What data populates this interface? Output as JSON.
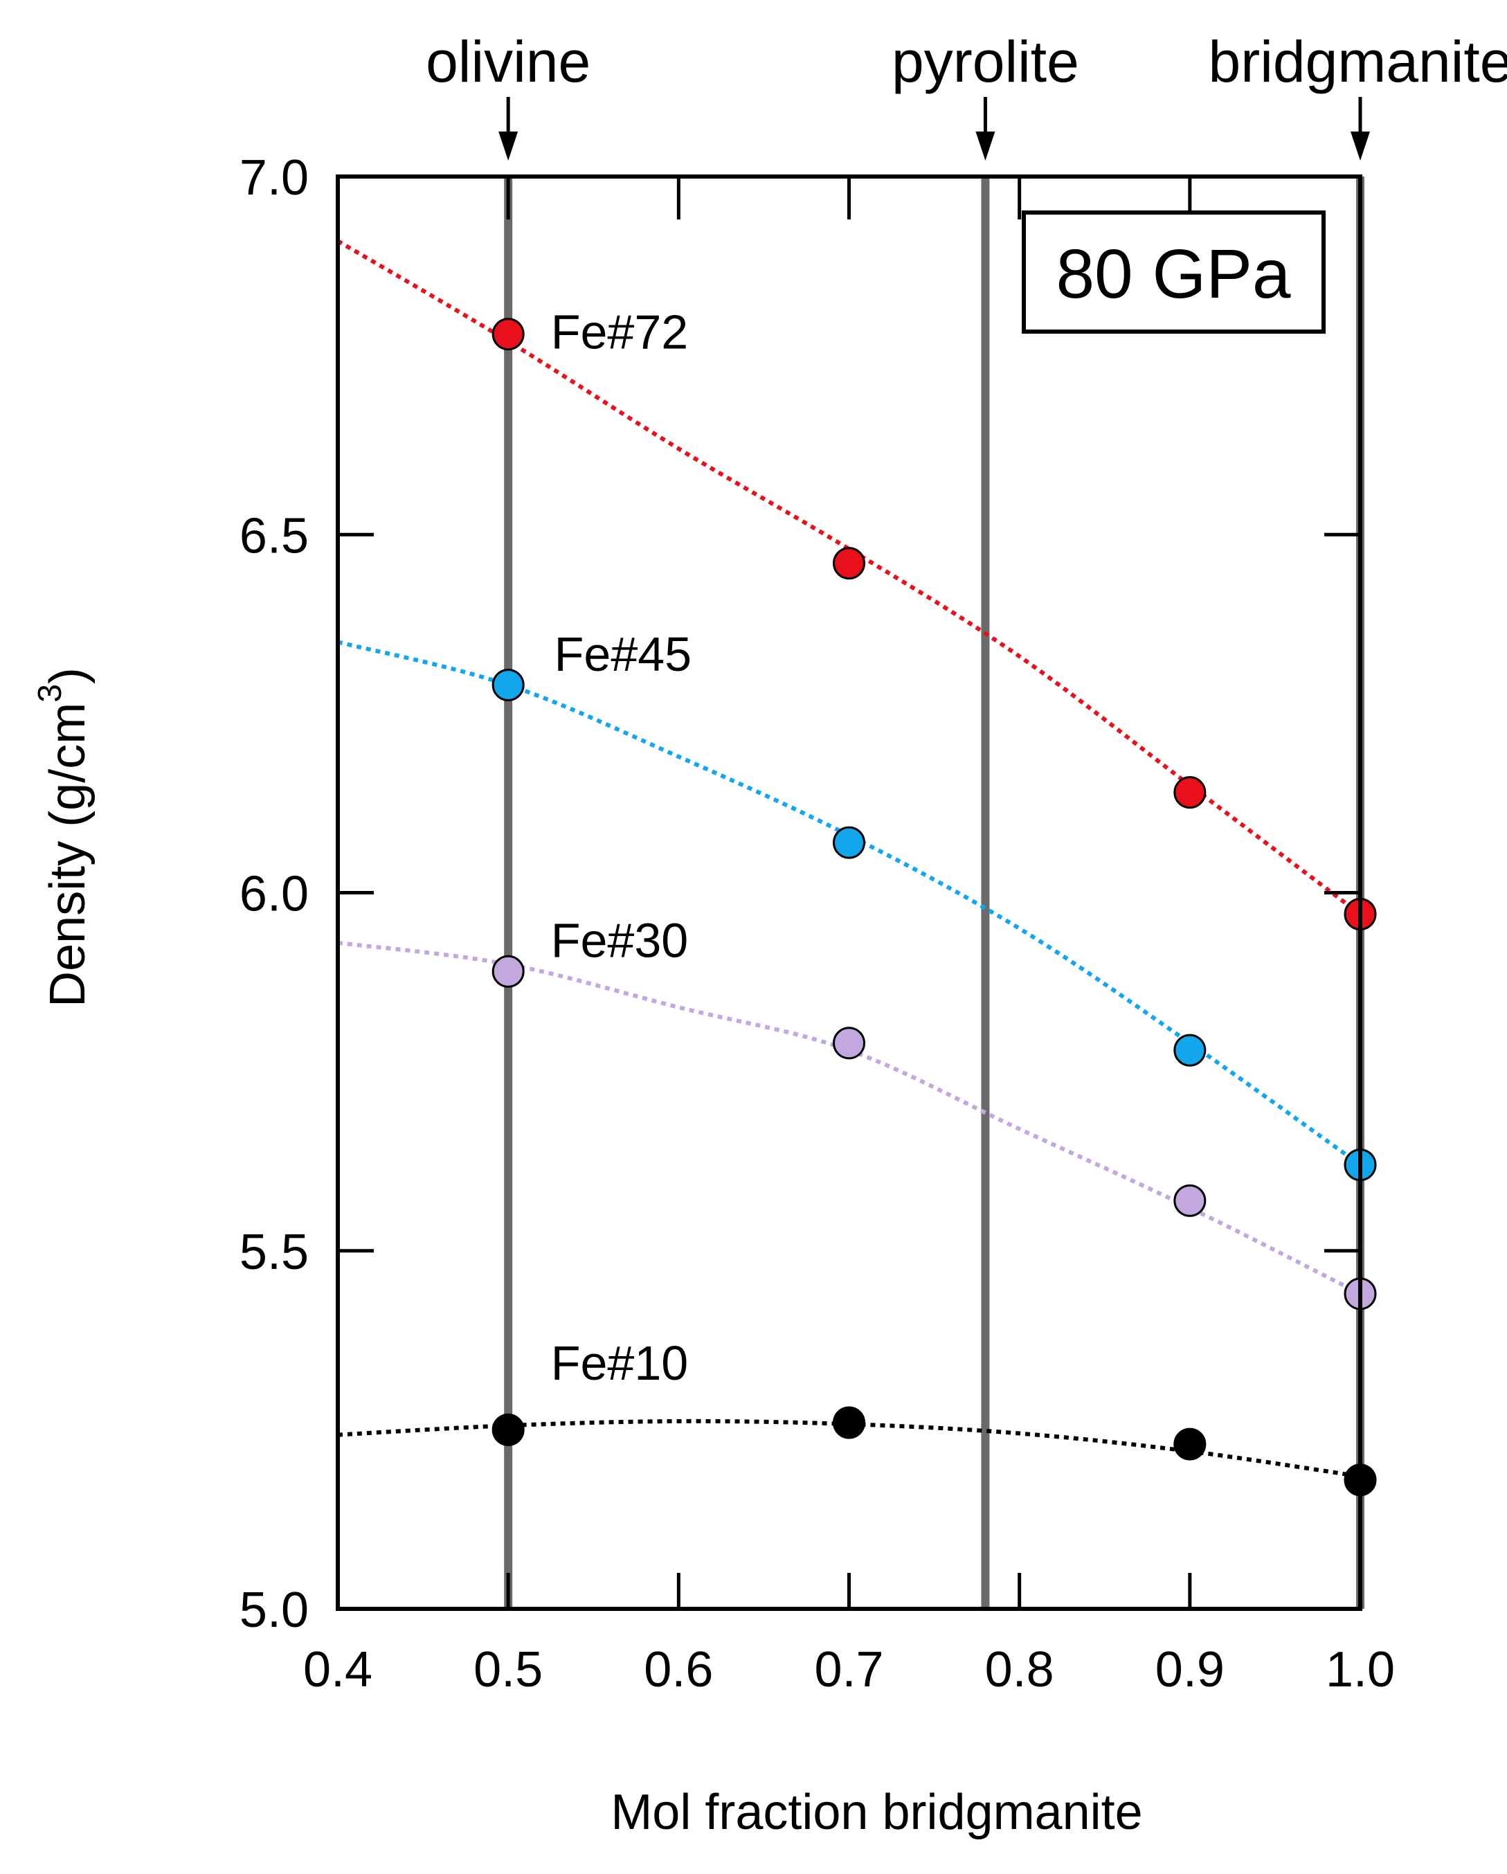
{
  "chart_data": {
    "type": "line",
    "title": "",
    "xlabel": "Mol fraction bridgmanite",
    "ylabel": "Density (g/cm",
    "ylabel_superscript": "3",
    "ylabel_close": ")",
    "xlim": [
      0.4,
      1.0
    ],
    "ylim": [
      5.0,
      7.0
    ],
    "x_ticks": [
      0.4,
      0.5,
      0.6,
      0.7,
      0.8,
      0.9,
      1.0
    ],
    "x_tick_labels": [
      "0.4",
      "0.5",
      "0.6",
      "0.7",
      "0.8",
      "0.9",
      "1.0"
    ],
    "y_ticks": [
      5.0,
      5.5,
      6.0,
      6.5,
      7.0
    ],
    "y_tick_labels": [
      "5.0",
      "5.5",
      "6.0",
      "6.5",
      "7.0"
    ],
    "grid": false,
    "annotation_box": "80 GPa",
    "reference_lines": [
      {
        "name": "olivine",
        "label": "olivine",
        "x": 0.5
      },
      {
        "name": "pyrolite",
        "label": "pyrolite",
        "x": 0.78
      },
      {
        "name": "bridgmanite",
        "label": "bridgmanite",
        "x": 1.0
      }
    ],
    "series": [
      {
        "name": "Fe#72",
        "label": "Fe#72",
        "color": "#e8101a",
        "x": [
          0.5,
          0.7,
          0.9,
          1.0
        ],
        "values": [
          6.78,
          6.46,
          6.14,
          5.97
        ],
        "fit_x": [
          0.4,
          0.5,
          0.6,
          0.7,
          0.8,
          0.9,
          1.0
        ],
        "fit_y": [
          6.91,
          6.77,
          6.62,
          6.48,
          6.33,
          6.15,
          5.97
        ],
        "label_x": 0.525,
        "label_y": 6.76
      },
      {
        "name": "Fe#45",
        "label": "Fe#45",
        "color": "#12a7ec",
        "x": [
          0.5,
          0.7,
          0.9,
          1.0
        ],
        "values": [
          6.29,
          6.07,
          5.78,
          5.62
        ],
        "fit_x": [
          0.4,
          0.5,
          0.6,
          0.7,
          0.8,
          0.9,
          1.0
        ],
        "fit_y": [
          6.35,
          6.29,
          6.19,
          6.08,
          5.95,
          5.79,
          5.62
        ],
        "label_x": 0.527,
        "label_y": 6.31
      },
      {
        "name": "Fe#30",
        "label": "Fe#30",
        "color": "#c3a8e0",
        "x": [
          0.5,
          0.7,
          0.9,
          1.0
        ],
        "values": [
          5.89,
          5.79,
          5.57,
          5.44
        ],
        "fit_x": [
          0.4,
          0.5,
          0.6,
          0.7,
          0.8,
          0.9,
          1.0
        ],
        "fit_y": [
          5.93,
          5.9,
          5.84,
          5.78,
          5.67,
          5.56,
          5.44
        ],
        "label_x": 0.525,
        "label_y": 5.91
      },
      {
        "name": "Fe#10",
        "label": "Fe#10",
        "color": "#000000",
        "x": [
          0.5,
          0.7,
          0.9,
          1.0
        ],
        "values": [
          5.25,
          5.26,
          5.23,
          5.18
        ],
        "fit_x": [
          0.4,
          0.5,
          0.6,
          0.7,
          0.8,
          0.9,
          1.0
        ],
        "fit_y": [
          5.243,
          5.256,
          5.262,
          5.258,
          5.245,
          5.22,
          5.185
        ],
        "label_x": 0.525,
        "label_y": 5.32
      }
    ]
  }
}
